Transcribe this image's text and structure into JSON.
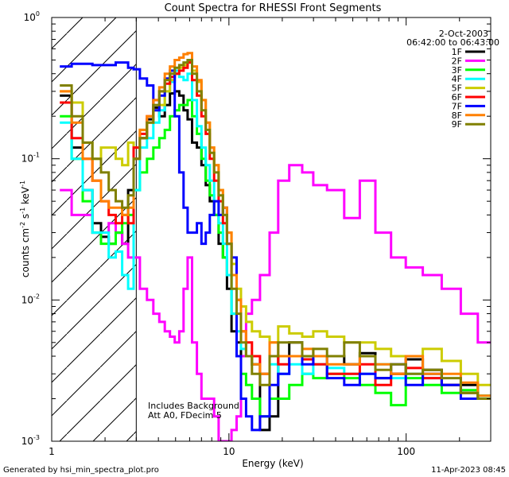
{
  "chart_data": {
    "type": "line",
    "title": "Count Spectra for RHESSI Front Segments",
    "xlabel": "Energy (keV)",
    "ylabel_parts": [
      "counts cm",
      "-2",
      " s",
      "-1",
      " keV",
      "-1"
    ],
    "xscale": "log",
    "yscale": "log",
    "xlim": [
      1.0,
      300.0
    ],
    "ylim": [
      0.001,
      1.0
    ],
    "x_ticks": [
      {
        "value": 1,
        "label": "1"
      },
      {
        "value": 10,
        "label": "10"
      },
      {
        "value": 100,
        "label": "100"
      }
    ],
    "y_ticks": [
      {
        "value": 1.0,
        "base": "10",
        "exp": "0"
      },
      {
        "value": 0.1,
        "base": "10",
        "exp": "-1"
      },
      {
        "value": 0.01,
        "base": "10",
        "exp": "-2"
      },
      {
        "value": 0.001,
        "base": "10",
        "exp": "-3"
      }
    ],
    "hatched_region": [
      1.0,
      3.0
    ],
    "legend_position": "top-right",
    "header_lines": [
      "2-Oct-2003",
      "06:42:00 to 06:43:00"
    ],
    "annotations": [
      "Includes Background",
      "Att A0, FDecim 5"
    ],
    "footer_left": "Generated by hsi_min_spectra_plot.pro",
    "footer_right": "11-Apr-2023 08:45",
    "series": [
      {
        "name": "1F",
        "color": "#000000",
        "x": [
          1.2,
          1.4,
          1.6,
          1.8,
          2.0,
          2.2,
          2.4,
          2.6,
          2.8,
          3.0,
          3.3,
          3.6,
          3.9,
          4.2,
          4.5,
          4.8,
          5.1,
          5.4,
          5.7,
          6.0,
          6.4,
          6.8,
          7.2,
          7.6,
          8.0,
          8.5,
          9.0,
          9.5,
          10.0,
          10.7,
          11.4,
          12.0,
          13.0,
          14.0,
          16.0,
          18.0,
          20.0,
          24.0,
          28.0,
          32.0,
          40.0,
          50.0,
          60.0,
          75.0,
          90.0,
          110.0,
          140.0,
          180.0,
          230.0,
          280.0
        ],
        "y": [
          0.28,
          0.12,
          0.06,
          0.035,
          0.028,
          0.025,
          0.03,
          0.025,
          0.06,
          0.1,
          0.14,
          0.19,
          0.23,
          0.2,
          0.24,
          0.29,
          0.3,
          0.28,
          0.22,
          0.19,
          0.13,
          0.12,
          0.09,
          0.065,
          0.05,
          0.04,
          0.025,
          0.02,
          0.012,
          0.006,
          0.005,
          0.004,
          0.004,
          0.0035,
          0.0012,
          0.0015,
          0.004,
          0.005,
          0.004,
          0.004,
          0.004,
          0.0035,
          0.0042,
          0.0028,
          0.003,
          0.0038,
          0.0032,
          0.0025,
          0.0025,
          0.002
        ]
      },
      {
        "name": "2F",
        "color": "#ff00ff",
        "x": [
          1.2,
          1.4,
          1.6,
          1.8,
          2.0,
          2.2,
          2.4,
          2.6,
          2.8,
          3.0,
          3.3,
          3.6,
          3.9,
          4.2,
          4.5,
          4.8,
          5.1,
          5.4,
          5.7,
          6.0,
          6.4,
          6.8,
          7.2,
          7.6,
          8.0,
          8.5,
          9.0,
          9.5,
          10.0,
          10.7,
          11.4,
          12.0,
          13.0,
          14.0,
          16.0,
          18.0,
          20.0,
          24.0,
          28.0,
          32.0,
          40.0,
          50.0,
          60.0,
          75.0,
          90.0,
          110.0,
          140.0,
          180.0,
          230.0,
          280.0
        ],
        "y": [
          0.06,
          0.04,
          0.04,
          0.03,
          0.03,
          0.035,
          0.03,
          0.025,
          0.02,
          0.02,
          0.012,
          0.01,
          0.008,
          0.007,
          0.006,
          0.0055,
          0.005,
          0.006,
          0.012,
          0.02,
          0.005,
          0.003,
          0.002,
          0.002,
          0.002,
          0.0015,
          0.001,
          0.001,
          0.001,
          0.0012,
          0.0015,
          0.004,
          0.008,
          0.01,
          0.015,
          0.03,
          0.07,
          0.09,
          0.08,
          0.065,
          0.06,
          0.038,
          0.07,
          0.03,
          0.02,
          0.017,
          0.015,
          0.012,
          0.008,
          0.005
        ]
      },
      {
        "name": "3F",
        "color": "#00ff00",
        "x": [
          1.2,
          1.4,
          1.6,
          1.8,
          2.0,
          2.2,
          2.4,
          2.6,
          2.8,
          3.0,
          3.3,
          3.6,
          3.9,
          4.2,
          4.5,
          4.8,
          5.1,
          5.4,
          5.7,
          6.0,
          6.4,
          6.8,
          7.2,
          7.6,
          8.0,
          8.5,
          9.0,
          9.5,
          10.0,
          10.7,
          11.4,
          12.0,
          13.0,
          14.0,
          16.0,
          18.0,
          20.0,
          24.0,
          28.0,
          32.0,
          40.0,
          50.0,
          60.0,
          75.0,
          90.0,
          110.0,
          140.0,
          180.0,
          230.0,
          280.0
        ],
        "y": [
          0.2,
          0.1,
          0.05,
          0.03,
          0.025,
          0.025,
          0.03,
          0.035,
          0.04,
          0.06,
          0.08,
          0.1,
          0.12,
          0.14,
          0.16,
          0.2,
          0.22,
          0.24,
          0.24,
          0.26,
          0.2,
          0.15,
          0.1,
          0.07,
          0.055,
          0.04,
          0.03,
          0.02,
          0.015,
          0.008,
          0.004,
          0.003,
          0.0025,
          0.002,
          0.0015,
          0.002,
          0.002,
          0.0025,
          0.003,
          0.0028,
          0.003,
          0.0028,
          0.0025,
          0.0022,
          0.0018,
          0.0028,
          0.0025,
          0.0022,
          0.0023,
          0.0021
        ]
      },
      {
        "name": "4F",
        "color": "#00ffff",
        "x": [
          1.2,
          1.4,
          1.6,
          1.8,
          2.0,
          2.2,
          2.4,
          2.6,
          2.8,
          3.0,
          3.3,
          3.6,
          3.9,
          4.2,
          4.5,
          4.8,
          5.1,
          5.4,
          5.7,
          6.0,
          6.4,
          6.8,
          7.2,
          7.6,
          8.0,
          8.5,
          9.0,
          9.5,
          10.0,
          10.7,
          11.4,
          12.0,
          13.0,
          14.0,
          16.0,
          18.0,
          20.0,
          24.0,
          28.0,
          32.0,
          40.0,
          50.0,
          60.0,
          75.0,
          90.0,
          110.0,
          140.0,
          180.0,
          230.0,
          280.0
        ],
        "y": [
          0.18,
          0.1,
          0.06,
          0.03,
          0.03,
          0.02,
          0.022,
          0.015,
          0.012,
          0.06,
          0.12,
          0.14,
          0.18,
          0.22,
          0.3,
          0.35,
          0.42,
          0.38,
          0.36,
          0.4,
          0.26,
          0.17,
          0.12,
          0.09,
          0.07,
          0.05,
          0.035,
          0.025,
          0.015,
          0.008,
          0.006,
          0.0045,
          0.004,
          0.0035,
          0.003,
          0.0035,
          0.003,
          0.0035,
          0.003,
          0.0035,
          0.0033,
          0.003,
          0.003,
          0.0035,
          0.0028,
          0.003,
          0.0028,
          0.0025,
          0.0022,
          0.0021
        ]
      },
      {
        "name": "5F",
        "color": "#cccc00",
        "x": [
          1.2,
          1.4,
          1.6,
          1.8,
          2.0,
          2.2,
          2.4,
          2.6,
          2.8,
          3.0,
          3.3,
          3.6,
          3.9,
          4.2,
          4.5,
          4.8,
          5.1,
          5.4,
          5.7,
          6.0,
          6.4,
          6.8,
          7.2,
          7.6,
          8.0,
          8.5,
          9.0,
          9.5,
          10.0,
          10.7,
          11.4,
          12.0,
          13.0,
          14.0,
          16.0,
          18.0,
          20.0,
          24.0,
          28.0,
          32.0,
          40.0,
          50.0,
          60.0,
          75.0,
          90.0,
          110.0,
          140.0,
          180.0,
          230.0,
          280.0
        ],
        "y": [
          0.3,
          0.25,
          0.13,
          0.1,
          0.12,
          0.12,
          0.1,
          0.09,
          0.13,
          0.12,
          0.16,
          0.18,
          0.22,
          0.24,
          0.3,
          0.36,
          0.4,
          0.44,
          0.46,
          0.48,
          0.42,
          0.35,
          0.26,
          0.18,
          0.12,
          0.09,
          0.06,
          0.045,
          0.03,
          0.018,
          0.012,
          0.009,
          0.007,
          0.006,
          0.0055,
          0.005,
          0.0065,
          0.0058,
          0.0055,
          0.006,
          0.0055,
          0.005,
          0.005,
          0.0045,
          0.004,
          0.004,
          0.0045,
          0.0037,
          0.003,
          0.0025
        ]
      },
      {
        "name": "6F",
        "color": "#ff0000",
        "x": [
          1.2,
          1.4,
          1.6,
          1.8,
          2.0,
          2.2,
          2.4,
          2.6,
          2.8,
          3.0,
          3.3,
          3.6,
          3.9,
          4.2,
          4.5,
          4.8,
          5.1,
          5.4,
          5.7,
          6.0,
          6.4,
          6.8,
          7.2,
          7.6,
          8.0,
          8.5,
          9.0,
          9.5,
          10.0,
          10.7,
          11.4,
          12.0,
          13.0,
          14.0,
          16.0,
          18.0,
          20.0,
          24.0,
          28.0,
          32.0,
          40.0,
          50.0,
          60.0,
          75.0,
          90.0,
          110.0,
          140.0,
          180.0,
          230.0,
          280.0
        ],
        "y": [
          0.25,
          0.14,
          0.1,
          0.07,
          0.05,
          0.04,
          0.035,
          0.04,
          0.035,
          0.12,
          0.15,
          0.2,
          0.26,
          0.3,
          0.34,
          0.38,
          0.4,
          0.42,
          0.44,
          0.48,
          0.36,
          0.28,
          0.2,
          0.15,
          0.1,
          0.07,
          0.05,
          0.035,
          0.025,
          0.015,
          0.01,
          0.006,
          0.005,
          0.004,
          0.003,
          0.004,
          0.0035,
          0.004,
          0.0038,
          0.0035,
          0.003,
          0.003,
          0.0035,
          0.0025,
          0.003,
          0.0033,
          0.0028,
          0.0025,
          0.0022,
          0.002
        ]
      },
      {
        "name": "7F",
        "color": "#0000ff",
        "x": [
          1.2,
          1.4,
          1.6,
          1.8,
          2.0,
          2.2,
          2.4,
          2.6,
          2.8,
          3.0,
          3.3,
          3.6,
          3.9,
          4.2,
          4.5,
          4.8,
          5.1,
          5.4,
          5.7,
          6.0,
          6.4,
          6.8,
          7.2,
          7.6,
          8.0,
          8.5,
          9.0,
          9.5,
          10.0,
          10.7,
          11.4,
          12.0,
          13.0,
          14.0,
          16.0,
          18.0,
          20.0,
          24.0,
          28.0,
          32.0,
          40.0,
          50.0,
          60.0,
          75.0,
          90.0,
          110.0,
          140.0,
          180.0,
          230.0,
          280.0
        ],
        "y": [
          0.45,
          0.47,
          0.47,
          0.46,
          0.46,
          0.46,
          0.48,
          0.48,
          0.44,
          0.43,
          0.37,
          0.33,
          0.22,
          0.28,
          0.37,
          0.42,
          0.2,
          0.08,
          0.045,
          0.03,
          0.03,
          0.035,
          0.025,
          0.03,
          0.04,
          0.05,
          0.04,
          0.045,
          0.025,
          0.02,
          0.004,
          0.002,
          0.0015,
          0.0012,
          0.0015,
          0.0025,
          0.003,
          0.004,
          0.0035,
          0.004,
          0.0028,
          0.0025,
          0.003,
          0.0028,
          0.0035,
          0.0025,
          0.003,
          0.0025,
          0.002,
          0.002
        ]
      },
      {
        "name": "8F",
        "color": "#ff8000",
        "x": [
          1.2,
          1.4,
          1.6,
          1.8,
          2.0,
          2.2,
          2.4,
          2.6,
          2.8,
          3.0,
          3.3,
          3.6,
          3.9,
          4.2,
          4.5,
          4.8,
          5.1,
          5.4,
          5.7,
          6.0,
          6.4,
          6.8,
          7.2,
          7.6,
          8.0,
          8.5,
          9.0,
          9.5,
          10.0,
          10.7,
          11.4,
          12.0,
          13.0,
          14.0,
          16.0,
          18.0,
          20.0,
          24.0,
          28.0,
          32.0,
          40.0,
          50.0,
          60.0,
          75.0,
          90.0,
          110.0,
          140.0,
          180.0,
          230.0,
          280.0
        ],
        "y": [
          0.3,
          0.18,
          0.1,
          0.07,
          0.05,
          0.045,
          0.045,
          0.04,
          0.045,
          0.1,
          0.16,
          0.2,
          0.26,
          0.32,
          0.4,
          0.45,
          0.5,
          0.52,
          0.55,
          0.56,
          0.45,
          0.36,
          0.26,
          0.18,
          0.12,
          0.09,
          0.06,
          0.045,
          0.03,
          0.015,
          0.01,
          0.006,
          0.004,
          0.0035,
          0.003,
          0.005,
          0.004,
          0.004,
          0.0045,
          0.004,
          0.0035,
          0.0035,
          0.004,
          0.0035,
          0.003,
          0.004,
          0.003,
          0.003,
          0.0026,
          0.0021
        ]
      },
      {
        "name": "9F",
        "color": "#808000",
        "x": [
          1.2,
          1.4,
          1.6,
          1.8,
          2.0,
          2.2,
          2.4,
          2.6,
          2.8,
          3.0,
          3.3,
          3.6,
          3.9,
          4.2,
          4.5,
          4.8,
          5.1,
          5.4,
          5.7,
          6.0,
          6.4,
          6.8,
          7.2,
          7.6,
          8.0,
          8.5,
          9.0,
          9.5,
          10.0,
          10.7,
          11.4,
          12.0,
          13.0,
          14.0,
          16.0,
          18.0,
          20.0,
          24.0,
          28.0,
          32.0,
          40.0,
          50.0,
          60.0,
          75.0,
          90.0,
          110.0,
          140.0,
          180.0,
          230.0,
          280.0
        ],
        "y": [
          0.33,
          0.2,
          0.13,
          0.1,
          0.08,
          0.06,
          0.05,
          0.045,
          0.055,
          0.1,
          0.14,
          0.18,
          0.24,
          0.3,
          0.36,
          0.4,
          0.44,
          0.46,
          0.48,
          0.5,
          0.4,
          0.3,
          0.22,
          0.16,
          0.11,
          0.08,
          0.055,
          0.04,
          0.025,
          0.012,
          0.008,
          0.005,
          0.004,
          0.003,
          0.0025,
          0.004,
          0.005,
          0.005,
          0.004,
          0.0045,
          0.004,
          0.005,
          0.004,
          0.0032,
          0.0035,
          0.003,
          0.0032,
          0.0028,
          0.0022,
          0.002
        ]
      }
    ]
  }
}
